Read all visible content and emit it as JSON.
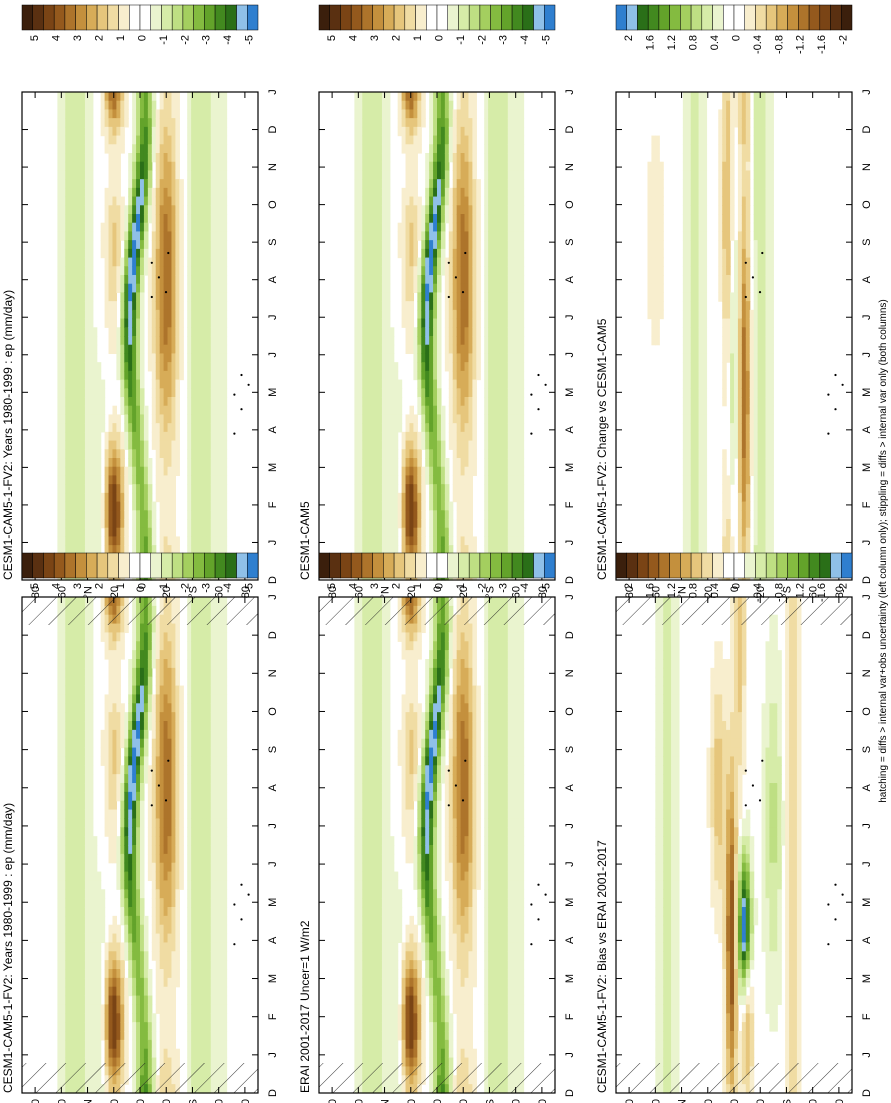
{
  "figure": {
    "footnote": "hatching = diffs > internal var+obs uncertainty (left column only); stippling = diffs > internal var only (both columns)"
  },
  "chart_data": [
    {
      "type": "heatmap",
      "title": "CESM1-CAM5-1-FV2: Years 1980-1999 : ep (mm/day)",
      "column": "left",
      "row": 1,
      "x_ticks": [
        "D",
        "J",
        "F",
        "M",
        "A",
        "M",
        "J",
        "J",
        "A",
        "S",
        "O",
        "N",
        "D",
        "J"
      ],
      "y_ticks": [
        "80",
        "60",
        "°N",
        "20",
        "0",
        "20",
        "°S",
        "60",
        "80"
      ],
      "ylim": [
        -90,
        90
      ],
      "colorbar": {
        "labels": [
          "5",
          "4",
          "3",
          "2",
          "1",
          "0",
          "-1",
          "-2",
          "-3",
          "-4",
          "-5"
        ],
        "range": [
          -5,
          5
        ]
      },
      "features": [
        {
          "name": "itcz-band",
          "kind": "negative",
          "lat": [
            -15,
            15
          ],
          "min": -5,
          "lat_path": [
            [
              0,
              -5
            ],
            [
              4,
              -8
            ],
            [
              6,
              -2
            ],
            [
              9,
              5
            ],
            [
              12,
              -5
            ]
          ]
        },
        {
          "name": "subtropical-n",
          "kind": "positive",
          "lat_center": 20,
          "max": 5,
          "peaks": [
            "F",
            "A"
          ]
        },
        {
          "name": "subtropical-s",
          "kind": "positive",
          "lat_center": -20,
          "max": 3,
          "peaks": [
            "J",
            "S"
          ]
        }
      ],
      "hatched": true,
      "stippled": true
    },
    {
      "type": "heatmap",
      "title": "CESM1-CAM5-1-FV2: Years 1980-1999 : ep (mm/day)",
      "column": "right",
      "row": 1,
      "x_ticks": [
        "D",
        "J",
        "F",
        "M",
        "A",
        "M",
        "J",
        "J",
        "A",
        "S",
        "O",
        "N",
        "D",
        "J"
      ],
      "y_ticks": [
        "80",
        "60",
        "°N",
        "20",
        "0",
        "20",
        "°S",
        "60",
        "80"
      ],
      "ylim": [
        -90,
        90
      ],
      "colorbar": {
        "labels": [
          "5",
          "4",
          "3",
          "2",
          "1",
          "0",
          "-1",
          "-2",
          "-3",
          "-4",
          "-5"
        ],
        "range": [
          -5,
          5
        ]
      },
      "hatched": false,
      "stippled": true
    },
    {
      "type": "heatmap",
      "title": "ERAI 2001-2017 Uncer=1 W/m2",
      "column": "left",
      "row": 2,
      "x_ticks": [
        "D",
        "J",
        "F",
        "M",
        "A",
        "M",
        "J",
        "J",
        "A",
        "S",
        "O",
        "N",
        "D",
        "J"
      ],
      "y_ticks": [
        "80",
        "60",
        "°N",
        "20",
        "0",
        "20",
        "°S",
        "60",
        "80"
      ],
      "ylim": [
        -90,
        90
      ],
      "colorbar": {
        "labels": [
          "5",
          "4",
          "3",
          "2",
          "1",
          "0",
          "-1",
          "-2",
          "-3",
          "-4",
          "-5"
        ],
        "range": [
          -5,
          5
        ]
      },
      "hatched": true,
      "stippled": true
    },
    {
      "type": "heatmap",
      "title": "CESM1-CAM5",
      "column": "right",
      "row": 2,
      "x_ticks": [
        "D",
        "J",
        "F",
        "M",
        "A",
        "M",
        "J",
        "J",
        "A",
        "S",
        "O",
        "N",
        "D",
        "J"
      ],
      "y_ticks": [
        "80",
        "60",
        "°N",
        "20",
        "0",
        "20",
        "°S",
        "60",
        "80"
      ],
      "ylim": [
        -90,
        90
      ],
      "colorbar": {
        "labels": [
          "5",
          "4",
          "3",
          "2",
          "1",
          "0",
          "-1",
          "-2",
          "-3",
          "-4",
          "-5"
        ],
        "range": [
          -5,
          5
        ]
      },
      "hatched": false,
      "stippled": true
    },
    {
      "type": "heatmap",
      "title": "CESM1-CAM5-1-FV2: Bias vs ERAI 2001-2017",
      "column": "left",
      "row": 3,
      "x_ticks": [
        "D",
        "J",
        "F",
        "M",
        "A",
        "M",
        "J",
        "J",
        "A",
        "S",
        "O",
        "N",
        "D",
        "J"
      ],
      "y_ticks": [
        "80",
        "60",
        "°N",
        "20",
        "0",
        "20",
        "°S",
        "60",
        "80"
      ],
      "ylim": [
        -90,
        90
      ],
      "colorbar": {
        "labels": [
          "2",
          "1.6",
          "1.2",
          "0.8",
          "0.4",
          "0",
          "-0.4",
          "-0.8",
          "-1.2",
          "-1.6",
          "-2"
        ],
        "range": [
          -2,
          2
        ]
      },
      "hatched": true,
      "stippled": true
    },
    {
      "type": "heatmap",
      "title": "CESM1-CAM5-1-FV2: Change vs CESM1-CAM5",
      "column": "right",
      "row": 3,
      "x_ticks": [
        "D",
        "J",
        "F",
        "M",
        "A",
        "M",
        "J",
        "J",
        "A",
        "S",
        "O",
        "N",
        "D",
        "J"
      ],
      "y_ticks": [
        "80",
        "60",
        "°N",
        "20",
        "0",
        "20",
        "°S",
        "60",
        "80"
      ],
      "ylim": [
        -90,
        90
      ],
      "colorbar": {
        "labels": [
          "2",
          "1.6",
          "1.2",
          "0.8",
          "0.4",
          "0",
          "-0.4",
          "-0.8",
          "-1.2",
          "-1.6",
          "-2"
        ],
        "range": [
          -2,
          2
        ],
        "reversed": true
      },
      "hatched": false,
      "stippled": true
    }
  ]
}
